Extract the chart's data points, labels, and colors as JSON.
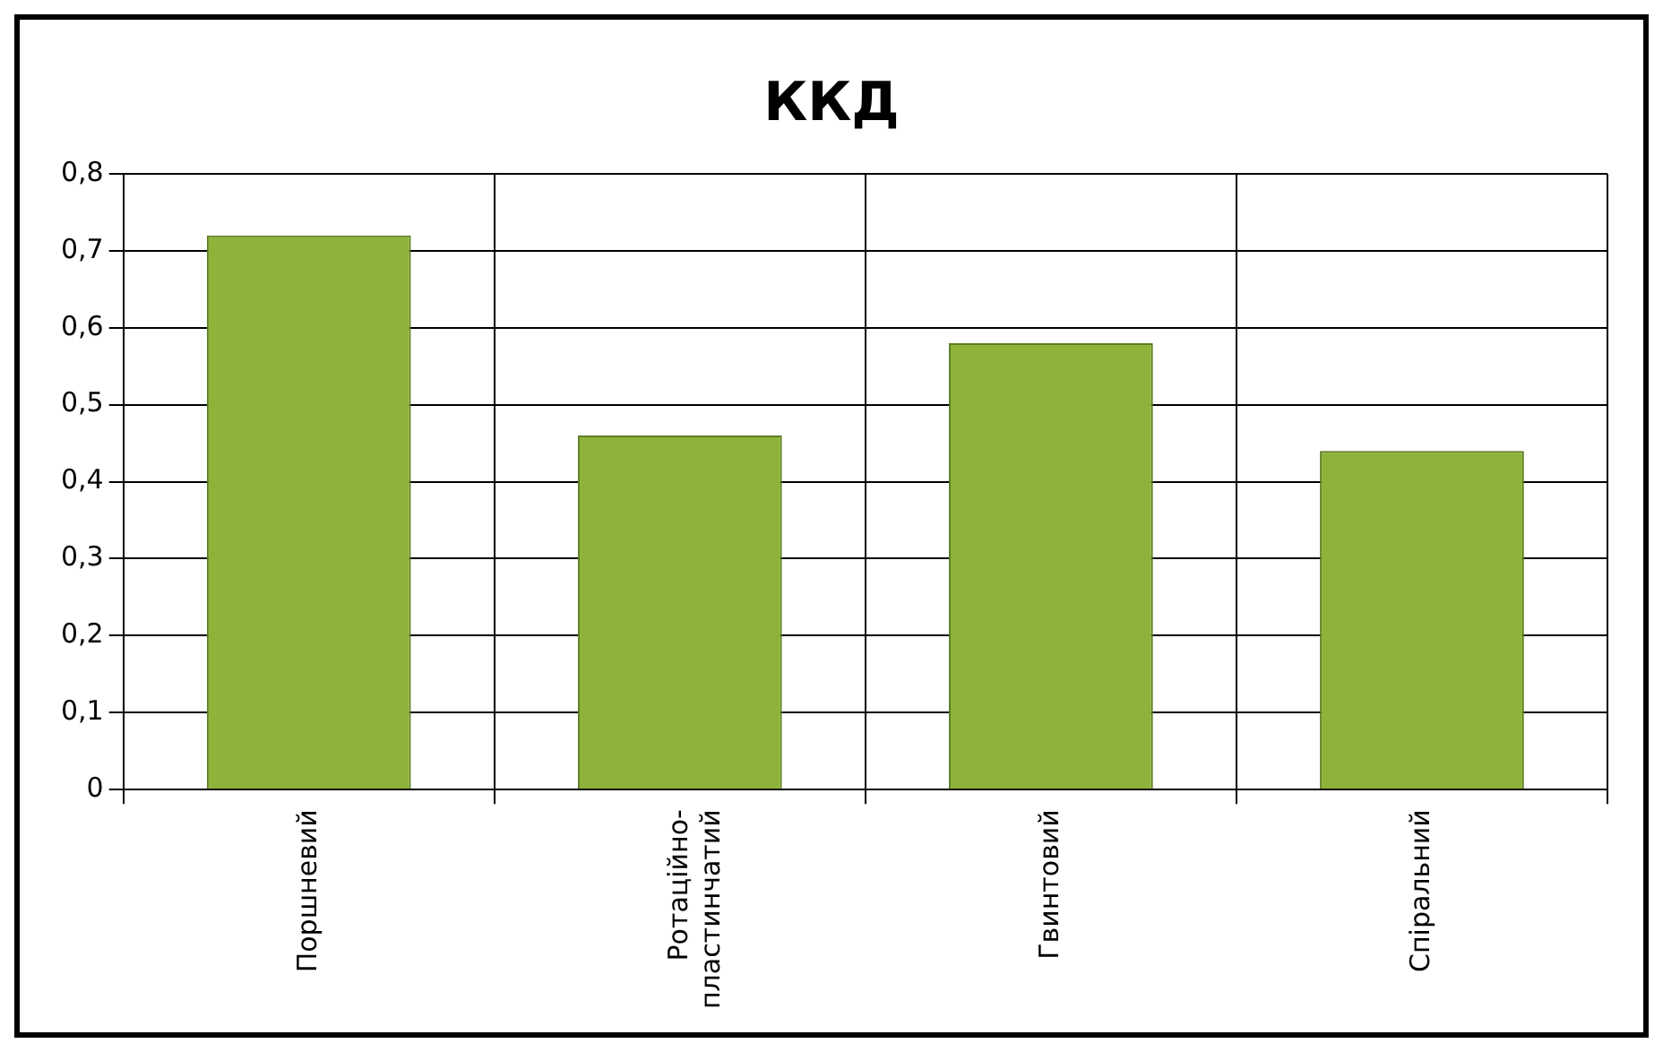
{
  "chart_data": {
    "type": "bar",
    "title": "ККД",
    "categories": [
      "Поршневий",
      "Ротаційно-пластинчатий",
      "Гвинтовий",
      "Спіральний"
    ],
    "values": [
      0.72,
      0.46,
      0.58,
      0.44
    ],
    "color": "#8db33a",
    "ylim": [
      0,
      0.8
    ],
    "yticks": [
      {
        "value": 0,
        "label": "0"
      },
      {
        "value": 0.1,
        "label": "0,1"
      },
      {
        "value": 0.2,
        "label": "0,2"
      },
      {
        "value": 0.3,
        "label": "0,3"
      },
      {
        "value": 0.4,
        "label": "0,4"
      },
      {
        "value": 0.5,
        "label": "0,5"
      },
      {
        "value": 0.6,
        "label": "0,6"
      },
      {
        "value": 0.7,
        "label": "0,7"
      },
      {
        "value": 0.8,
        "label": "0,8"
      }
    ],
    "grid": true
  }
}
